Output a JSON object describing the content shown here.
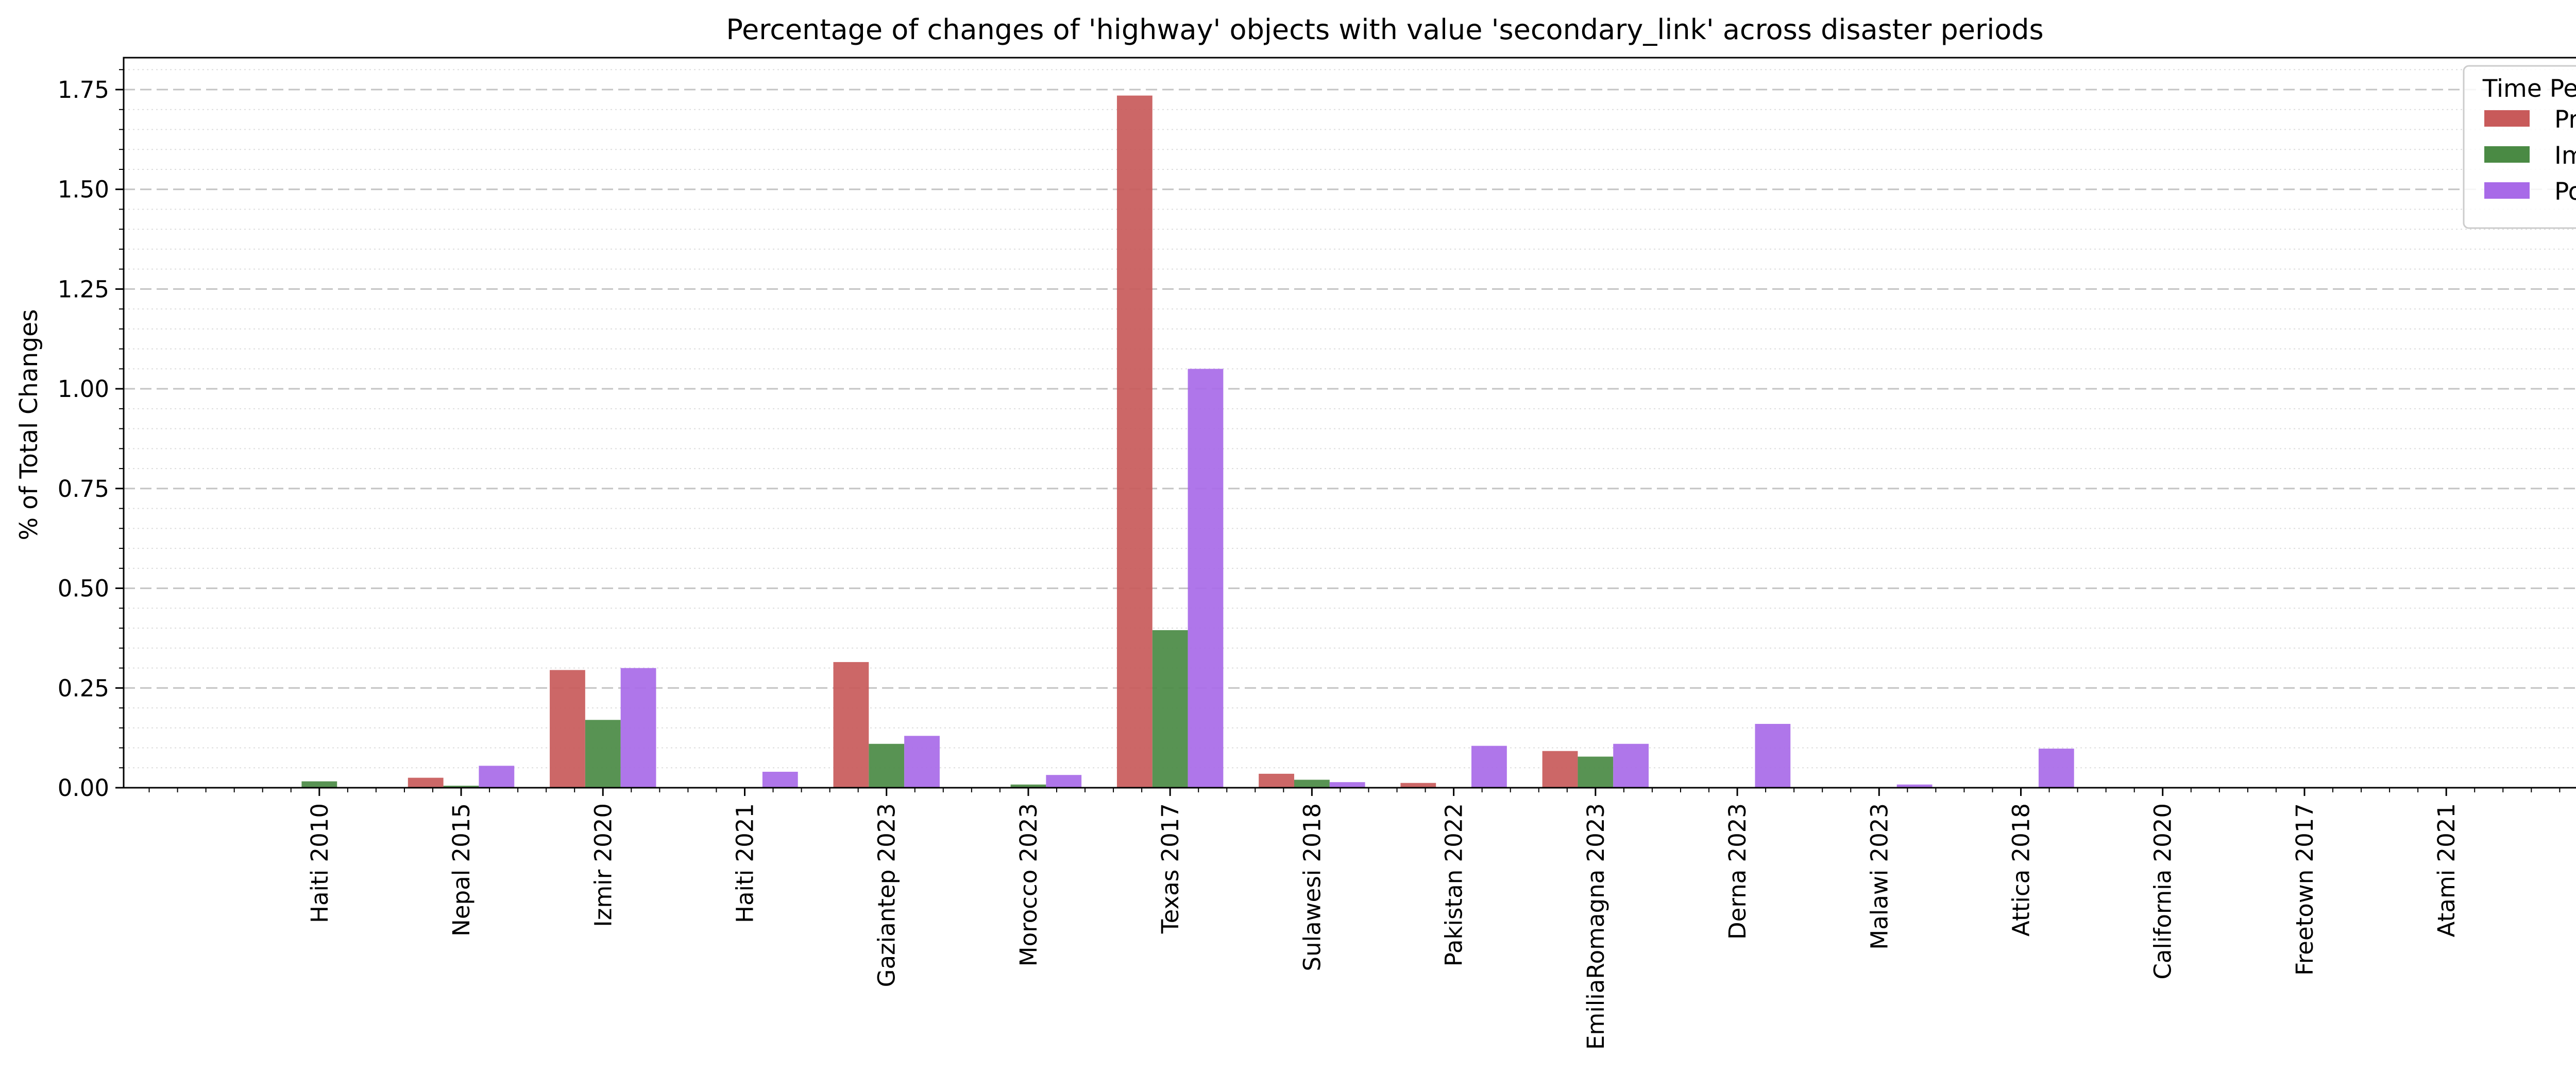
{
  "chart_data": {
    "type": "bar",
    "title": "Percentage of changes of 'highway' objects with value 'secondary_link' across disaster periods",
    "xlabel": "",
    "ylabel": "% of Total Changes",
    "ylim": [
      0,
      1.83
    ],
    "yticks": [
      "0.00",
      "0.25",
      "0.50",
      "0.75",
      "1.00",
      "1.25",
      "1.50",
      "1.75"
    ],
    "grid": "horizontal dashed (major) and dotted (minor)",
    "legend": {
      "title": "Time Period",
      "position": "top-right"
    },
    "categories": [
      "Haiti 2010",
      "Nepal 2015",
      "Izmir 2020",
      "Haiti 2021",
      "Gaziantep 2023",
      "Morocco 2023",
      "Texas 2017",
      "Sulawesi 2018",
      "Pakistan 2022",
      "EmiliaRomagna 2023",
      "Derna 2023",
      "Malawi 2023",
      "Attica 2018",
      "California 2020",
      "Freetown 2017",
      "Atami 2021"
    ],
    "series": [
      {
        "name": "Pre",
        "color": "#c85a5a",
        "values": [
          0,
          0.025,
          0.295,
          0,
          0.315,
          0,
          1.735,
          0.035,
          0.012,
          0.092,
          0,
          0,
          0,
          0,
          0,
          0
        ]
      },
      {
        "name": "Imm",
        "color": "#4a8a44",
        "values": [
          0.016,
          0.005,
          0.17,
          0,
          0.11,
          0.008,
          0.395,
          0.02,
          0,
          0.078,
          0,
          0,
          0,
          0,
          0,
          0
        ]
      },
      {
        "name": "Post",
        "color": "#a86ae8",
        "values": [
          0,
          0.055,
          0.3,
          0.04,
          0.13,
          0.032,
          1.05,
          0.014,
          0.105,
          0.11,
          0.16,
          0.008,
          0.098,
          0,
          0,
          0
        ]
      }
    ]
  }
}
